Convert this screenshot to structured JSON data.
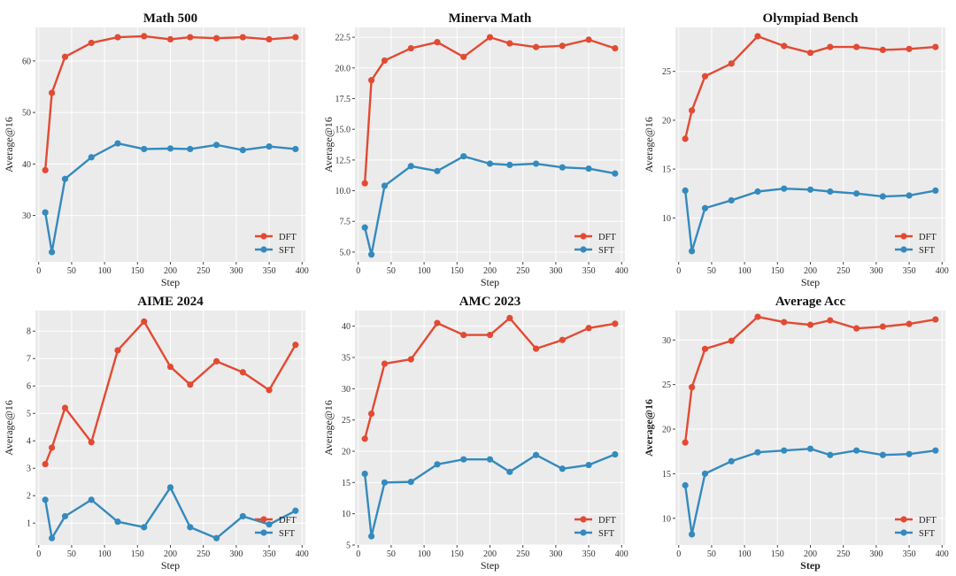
{
  "figure": {
    "colors": {
      "dft": "#e24a33",
      "sft": "#348abd"
    }
  },
  "chart_data": [
    {
      "type": "line",
      "title": "Math 500",
      "xlabel": "Step",
      "ylabel": "Average@16",
      "xlim": [
        -5,
        405
      ],
      "ylim": [
        21,
        66.5
      ],
      "xticks": [
        0,
        50,
        100,
        150,
        200,
        250,
        300,
        350,
        400
      ],
      "yticks": [
        30,
        40,
        50,
        60
      ],
      "ytick_labels": [
        "30",
        "40",
        "50",
        "60"
      ],
      "legend": "lower-right",
      "x": [
        10,
        20,
        40,
        80,
        120,
        160,
        200,
        230,
        270,
        310,
        350,
        390
      ],
      "series": [
        {
          "name": "DFT",
          "values": [
            38.8,
            53.8,
            60.8,
            63.5,
            64.6,
            64.8,
            64.2,
            64.6,
            64.4,
            64.6,
            64.2,
            64.6
          ]
        },
        {
          "name": "SFT",
          "values": [
            30.6,
            22.9,
            37.1,
            41.3,
            44.0,
            42.9,
            43.0,
            42.9,
            43.7,
            42.7,
            43.4,
            42.9
          ]
        }
      ]
    },
    {
      "type": "line",
      "title": "Minerva Math",
      "xlabel": "Step",
      "ylabel": "Average@16",
      "xlim": [
        -5,
        405
      ],
      "ylim": [
        4.2,
        23.3
      ],
      "xticks": [
        0,
        50,
        100,
        150,
        200,
        250,
        300,
        350,
        400
      ],
      "yticks": [
        5,
        7.5,
        10,
        12.5,
        15,
        17.5,
        20,
        22.5
      ],
      "ytick_labels": [
        "5.0",
        "7.5",
        "10.0",
        "12.5",
        "15.0",
        "17.5",
        "20.0",
        "22.5"
      ],
      "legend": "lower-right",
      "x": [
        10,
        20,
        40,
        80,
        120,
        160,
        200,
        230,
        270,
        310,
        350,
        390
      ],
      "series": [
        {
          "name": "DFT",
          "values": [
            10.6,
            19.0,
            20.6,
            21.6,
            22.1,
            20.9,
            22.5,
            22.0,
            21.7,
            21.8,
            22.3,
            21.6
          ]
        },
        {
          "name": "SFT",
          "values": [
            7.0,
            4.8,
            10.4,
            12.0,
            11.6,
            12.8,
            12.2,
            12.1,
            12.2,
            11.9,
            11.8,
            11.4
          ]
        }
      ]
    },
    {
      "type": "line",
      "title": "Olympiad Bench",
      "xlabel": "Step",
      "ylabel": "Average@16",
      "xlim": [
        -5,
        405
      ],
      "ylim": [
        5.5,
        29.5
      ],
      "xticks": [
        0,
        50,
        100,
        150,
        200,
        250,
        300,
        350,
        400
      ],
      "yticks": [
        10,
        15,
        20,
        25
      ],
      "ytick_labels": [
        "10",
        "15",
        "20",
        "25"
      ],
      "legend": "lower-right",
      "x": [
        10,
        20,
        40,
        80,
        120,
        160,
        200,
        230,
        270,
        310,
        350,
        390
      ],
      "series": [
        {
          "name": "DFT",
          "values": [
            18.1,
            21.0,
            24.5,
            25.8,
            28.6,
            27.6,
            26.9,
            27.5,
            27.5,
            27.2,
            27.3,
            27.5
          ]
        },
        {
          "name": "SFT",
          "values": [
            12.8,
            6.6,
            11.0,
            11.8,
            12.7,
            13.0,
            12.9,
            12.7,
            12.5,
            12.2,
            12.3,
            12.8
          ]
        }
      ]
    },
    {
      "type": "line",
      "title": "AIME 2024",
      "xlabel": "Step",
      "ylabel": "Average@16",
      "xlim": [
        -5,
        405
      ],
      "ylim": [
        0.2,
        8.75
      ],
      "xticks": [
        0,
        50,
        100,
        150,
        200,
        250,
        300,
        350,
        400
      ],
      "yticks": [
        1,
        2,
        3,
        4,
        5,
        6,
        7,
        8
      ],
      "ytick_labels": [
        "1",
        "2",
        "3",
        "4",
        "5",
        "6",
        "7",
        "8"
      ],
      "legend": "lower-right",
      "x": [
        10,
        20,
        40,
        80,
        120,
        160,
        200,
        230,
        270,
        310,
        350,
        390
      ],
      "series": [
        {
          "name": "DFT",
          "values": [
            3.15,
            3.75,
            5.2,
            3.95,
            7.3,
            8.35,
            6.7,
            6.05,
            6.9,
            6.5,
            5.85,
            7.5
          ]
        },
        {
          "name": "SFT",
          "values": [
            1.85,
            0.45,
            1.25,
            1.85,
            1.05,
            0.85,
            2.3,
            0.85,
            0.45,
            1.25,
            0.95,
            1.45
          ]
        }
      ]
    },
    {
      "type": "line",
      "title": "AMC 2023",
      "xlabel": "Step",
      "ylabel": "Average@16",
      "xlim": [
        -5,
        405
      ],
      "ylim": [
        5.0,
        42.5
      ],
      "xticks": [
        0,
        50,
        100,
        150,
        200,
        250,
        300,
        350,
        400
      ],
      "yticks": [
        5,
        10,
        15,
        20,
        25,
        30,
        35,
        40
      ],
      "ytick_labels": [
        "5",
        "10",
        "15",
        "20",
        "25",
        "30",
        "35",
        "40"
      ],
      "legend": "lower-right",
      "x": [
        10,
        20,
        40,
        80,
        120,
        160,
        200,
        230,
        270,
        310,
        350,
        390
      ],
      "series": [
        {
          "name": "DFT",
          "values": [
            22.0,
            26.0,
            34.0,
            34.7,
            40.5,
            38.6,
            38.6,
            41.3,
            36.4,
            37.8,
            39.7,
            40.4
          ]
        },
        {
          "name": "SFT",
          "values": [
            16.4,
            6.4,
            15.0,
            15.1,
            17.9,
            18.7,
            18.7,
            16.7,
            19.4,
            17.2,
            17.8,
            19.5
          ]
        }
      ]
    },
    {
      "type": "line",
      "title": "Average Acc",
      "xlabel": "Step",
      "ylabel": "Average@16",
      "xlim": [
        -5,
        405
      ],
      "ylim": [
        7.0,
        33.3
      ],
      "xticks": [
        0,
        50,
        100,
        150,
        200,
        250,
        300,
        350,
        400
      ],
      "yticks": [
        10,
        15,
        20,
        25,
        30
      ],
      "ytick_labels": [
        "10",
        "15",
        "20",
        "25",
        "30"
      ],
      "legend": "lower-right",
      "bold_axis_labels": true,
      "x": [
        10,
        20,
        40,
        80,
        120,
        160,
        200,
        230,
        270,
        310,
        350,
        390
      ],
      "series": [
        {
          "name": "DFT",
          "values": [
            18.5,
            24.7,
            29.0,
            29.9,
            32.6,
            32.0,
            31.7,
            32.2,
            31.3,
            31.5,
            31.8,
            32.3
          ]
        },
        {
          "name": "SFT",
          "values": [
            13.7,
            8.2,
            15.0,
            16.4,
            17.4,
            17.6,
            17.8,
            17.1,
            17.6,
            17.1,
            17.2,
            17.6
          ]
        }
      ]
    }
  ]
}
